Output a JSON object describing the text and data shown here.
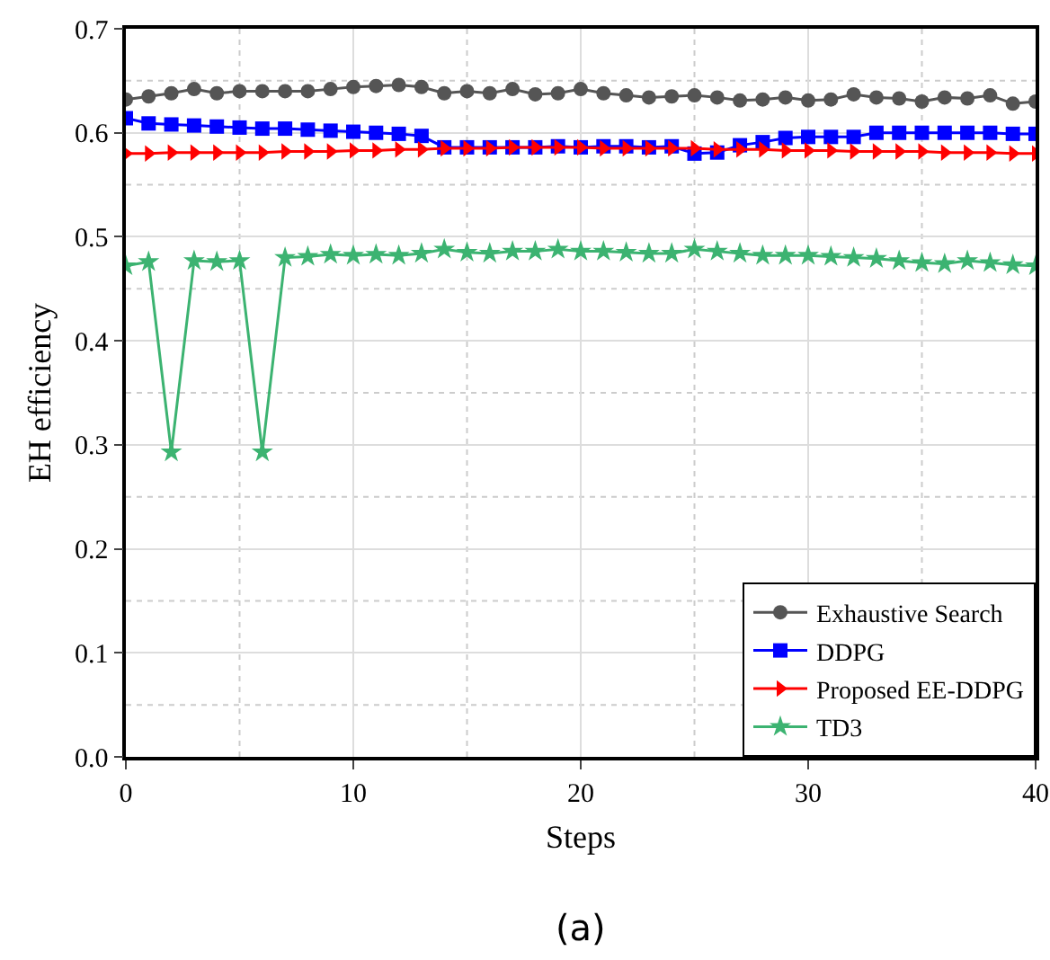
{
  "chart_data": {
    "type": "line",
    "xlabel": "Steps",
    "ylabel": "EH efficiency",
    "annotations": [
      "(a)"
    ],
    "x": [
      0,
      1,
      2,
      3,
      4,
      5,
      6,
      7,
      8,
      9,
      10,
      11,
      12,
      13,
      14,
      15,
      16,
      17,
      18,
      19,
      20,
      21,
      22,
      23,
      24,
      25,
      26,
      27,
      28,
      29,
      30,
      31,
      32,
      33,
      34,
      35,
      36,
      37,
      38,
      39,
      40
    ],
    "xlim": [
      0,
      40
    ],
    "xticks": [
      0,
      10,
      20,
      30,
      40
    ],
    "ylim": [
      0,
      0.7
    ],
    "yticks": [
      {
        "value": 0,
        "label": "0.0"
      },
      0.1,
      0.2,
      0.3,
      0.4,
      0.5,
      0.6,
      0.7
    ],
    "grid": true,
    "legend": "bottom right",
    "line_style": "solid",
    "series": [
      {
        "name": "Exhaustive Search",
        "color": "#555555",
        "marker": "circle",
        "values": [
          0.632,
          0.635,
          0.638,
          0.642,
          0.638,
          0.64,
          0.64,
          0.64,
          0.64,
          0.642,
          0.644,
          0.645,
          0.646,
          0.644,
          0.638,
          0.64,
          0.638,
          0.642,
          0.637,
          0.638,
          0.642,
          0.638,
          0.636,
          0.634,
          0.635,
          0.636,
          0.634,
          0.631,
          0.632,
          0.634,
          0.631,
          0.632,
          0.637,
          0.634,
          0.633,
          0.63,
          0.634,
          0.633,
          0.636,
          0.628,
          0.63
        ]
      },
      {
        "name": "DDPG",
        "color": "#0000ff",
        "marker": "square",
        "values": [
          0.614,
          0.609,
          0.608,
          0.607,
          0.606,
          0.605,
          0.604,
          0.604,
          0.603,
          0.602,
          0.601,
          0.6,
          0.599,
          0.597,
          0.586,
          0.586,
          0.586,
          0.586,
          0.586,
          0.587,
          0.586,
          0.587,
          0.587,
          0.586,
          0.587,
          0.58,
          0.581,
          0.588,
          0.591,
          0.595,
          0.596,
          0.596,
          0.596,
          0.6,
          0.6,
          0.6,
          0.6,
          0.6,
          0.6,
          0.599,
          0.599
        ]
      },
      {
        "name": "Proposed EE-DDPG",
        "color": "#ff0000",
        "marker": "triangle",
        "values": [
          0.58,
          0.58,
          0.581,
          0.581,
          0.581,
          0.581,
          0.581,
          0.582,
          0.582,
          0.582,
          0.583,
          0.583,
          0.584,
          0.584,
          0.585,
          0.585,
          0.585,
          0.586,
          0.586,
          0.586,
          0.586,
          0.585,
          0.585,
          0.585,
          0.585,
          0.585,
          0.584,
          0.584,
          0.584,
          0.583,
          0.583,
          0.583,
          0.582,
          0.582,
          0.582,
          0.582,
          0.581,
          0.581,
          0.581,
          0.58,
          0.58
        ]
      },
      {
        "name": "TD3",
        "color": "#3cb371",
        "marker": "star",
        "values": [
          0.472,
          0.476,
          0.293,
          0.477,
          0.476,
          0.477,
          0.293,
          0.48,
          0.481,
          0.483,
          0.482,
          0.483,
          0.482,
          0.484,
          0.488,
          0.485,
          0.484,
          0.486,
          0.486,
          0.488,
          0.486,
          0.486,
          0.485,
          0.484,
          0.484,
          0.488,
          0.486,
          0.484,
          0.482,
          0.482,
          0.482,
          0.481,
          0.48,
          0.479,
          0.477,
          0.475,
          0.474,
          0.477,
          0.475,
          0.473,
          0.472
        ]
      }
    ]
  }
}
